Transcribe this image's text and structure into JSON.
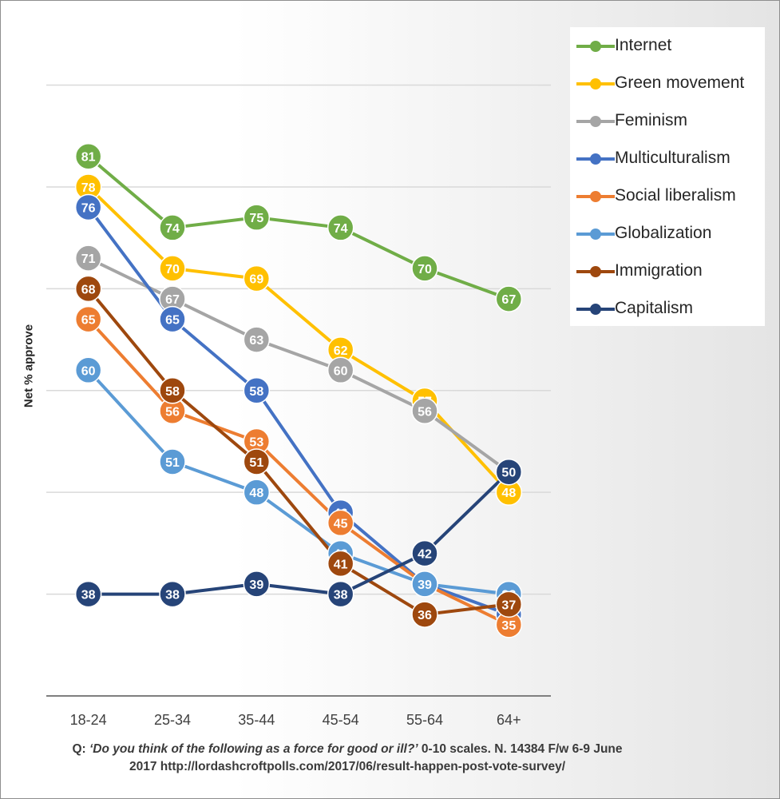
{
  "chart_data": {
    "type": "line",
    "ylabel": "Net % approve",
    "xlabel": "",
    "categories": [
      "18-24",
      "25-34",
      "35-44",
      "45-54",
      "55-64",
      "64+"
    ],
    "ylim": [
      28,
      82
    ],
    "gridlines": [
      28,
      38,
      48,
      58,
      68,
      78,
      88
    ],
    "series": [
      {
        "name": "Internet",
        "color": "#70ad47",
        "values": [
          81,
          74,
          75,
          74,
          70,
          67
        ]
      },
      {
        "name": "Green movement",
        "color": "#ffc000",
        "values": [
          78,
          70,
          69,
          62,
          57,
          48
        ]
      },
      {
        "name": "Feminism",
        "color": "#a5a5a5",
        "values": [
          71,
          67,
          63,
          60,
          56,
          50
        ]
      },
      {
        "name": "Multiculturalism",
        "color": "#4472c4",
        "values": [
          76,
          65,
          58,
          46,
          39,
          36
        ]
      },
      {
        "name": "Social liberalism",
        "color": "#ed7d31",
        "values": [
          65,
          56,
          53,
          45,
          39,
          35
        ]
      },
      {
        "name": "Globalization",
        "color": "#5b9bd5",
        "values": [
          60,
          51,
          48,
          42,
          39,
          38
        ]
      },
      {
        "name": "Immigration",
        "color": "#9e480e",
        "values": [
          68,
          58,
          51,
          41,
          36,
          37
        ]
      },
      {
        "name": "Capitalism",
        "color": "#264478",
        "values": [
          38,
          38,
          39,
          38,
          42,
          50
        ]
      }
    ],
    "legend_position": "top-right"
  },
  "footnote": {
    "q_label": "Q:",
    "question": "‘Do you think of the following as a force for good or ill?’",
    "rest_line1": " 0-10 scales.  N. 14384 F/w 6-9 June",
    "line2": "2017 http://lordashcroftpolls.com/2017/06/result-happen-post-vote-survey/"
  }
}
